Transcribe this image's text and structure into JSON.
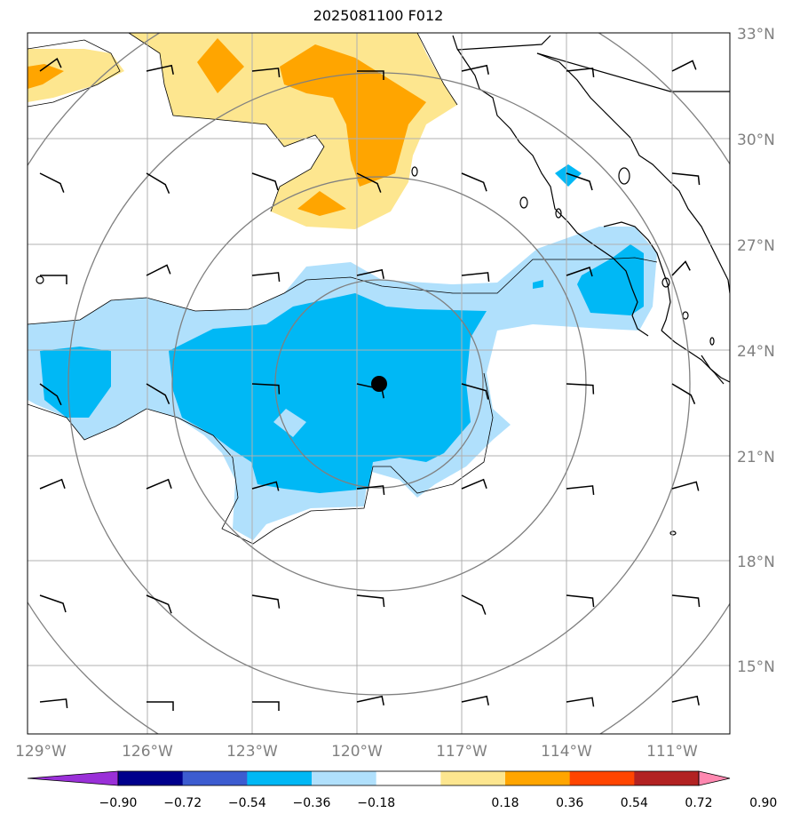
{
  "title": "2025081100 F012",
  "map": {
    "lat_labels": [
      "33°N",
      "30°N",
      "27°N",
      "24°N",
      "21°N",
      "18°N",
      "15°N"
    ],
    "lon_labels": [
      "129°W",
      "126°W",
      "123°W",
      "120°W",
      "117°W",
      "114°W",
      "111°W"
    ],
    "center_marker": "storm-center",
    "range_rings": 4
  },
  "colorbar": {
    "labels": [
      "−0.90",
      "−0.72",
      "−0.54",
      "−0.36",
      "−0.18",
      "0.18",
      "0.36",
      "0.54",
      "0.72",
      "0.90"
    ],
    "colors": [
      "#9a30d8",
      "#00008c",
      "#3c5cd0",
      "#00b8f5",
      "#b0e0fc",
      "#ffffff",
      "#fde68f",
      "#ffa500",
      "#ff4500",
      "#b22222",
      "#ff88b0"
    ]
  }
}
